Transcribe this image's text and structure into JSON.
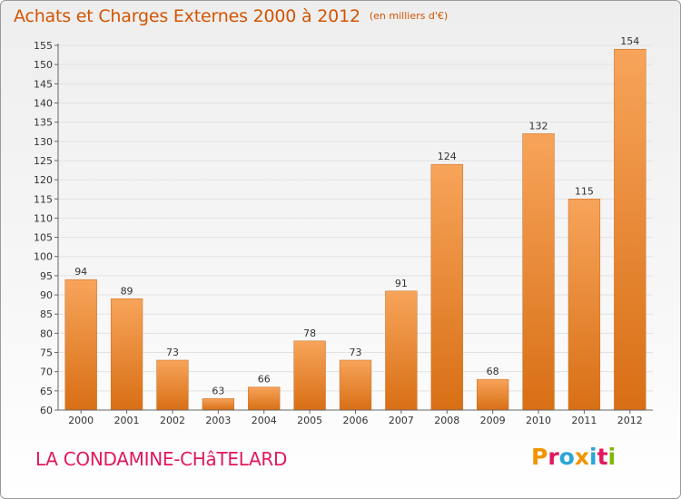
{
  "header": {
    "title": "Achats et Charges Externes 2000 à 2012",
    "unit": "(en milliers d'€)"
  },
  "footer": {
    "place": "LA CONDAMINE-CHâTELARD",
    "brand": "Proxiti",
    "brand_colors": [
      "#f29400",
      "#e2185f",
      "#2aa5d8",
      "#f29400",
      "#2aa5d8",
      "#e2185f",
      "#7fb800"
    ]
  },
  "colors": {
    "title": "#d35400",
    "bar_light": "#f7a45a",
    "bar_dark": "#d86f15",
    "axis": "#666666",
    "grid": "#e2e2e2"
  },
  "chart_data": {
    "type": "bar",
    "categories": [
      "2000",
      "2001",
      "2002",
      "2003",
      "2004",
      "2005",
      "2006",
      "2007",
      "2008",
      "2009",
      "2010",
      "2011",
      "2012"
    ],
    "values": [
      94,
      89,
      73,
      63,
      66,
      78,
      73,
      91,
      124,
      68,
      132,
      115,
      154
    ],
    "data_labels": [
      "94",
      "89",
      "73",
      "63",
      "66",
      "78",
      "73",
      "91",
      "124",
      "68",
      "132",
      "115",
      "154"
    ],
    "yticks": [
      60,
      65,
      70,
      75,
      80,
      85,
      90,
      95,
      100,
      105,
      110,
      115,
      120,
      125,
      130,
      135,
      140,
      145,
      150,
      155
    ],
    "ylim": [
      60,
      155
    ],
    "grid": true,
    "legend": "none",
    "title": "Achats et Charges Externes 2000 à 2012",
    "xlabel": "",
    "ylabel": ""
  }
}
